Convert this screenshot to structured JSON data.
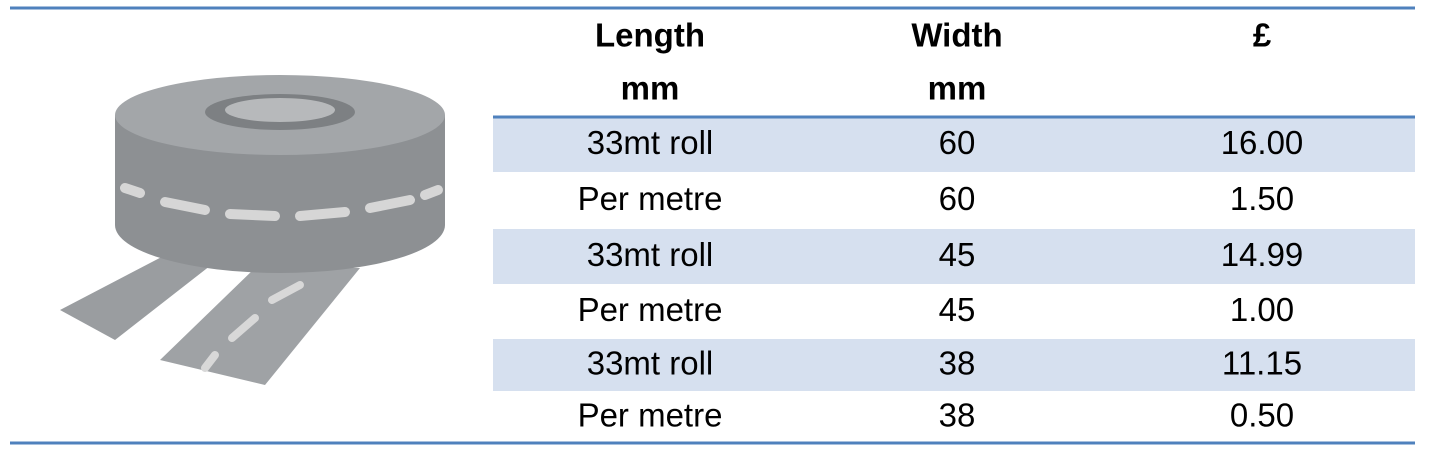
{
  "header": [
    [
      "Length",
      "mm"
    ],
    [
      "Width",
      "mm"
    ],
    [
      "£"
    ]
  ],
  "rows": [
    [
      "33mt roll",
      "60",
      "16.00"
    ],
    [
      "Per metre",
      "60",
      "1.50"
    ],
    [
      "33mt roll",
      "45",
      "14.99"
    ],
    [
      "Per metre",
      "45",
      "1.00"
    ],
    [
      "33mt roll",
      "38",
      "11.15"
    ],
    [
      "Per metre",
      "38",
      "0.50"
    ]
  ]
}
